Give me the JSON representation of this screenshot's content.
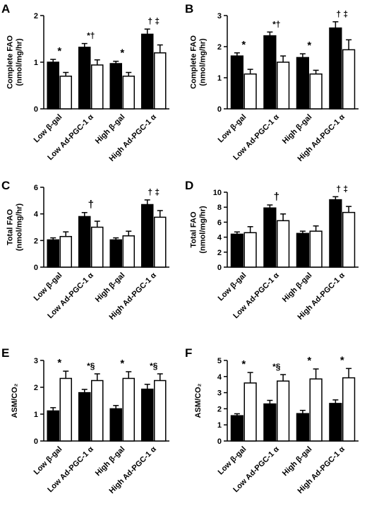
{
  "chart_data": [
    {
      "type": "bar",
      "panel": "A",
      "ylabel": [
        "Complete FAO",
        "(nmol/mg/hr)"
      ],
      "ylim": [
        0,
        2
      ],
      "yticks": [
        0,
        1,
        2
      ],
      "categories": [
        "Low β-gal",
        "Low Ad-PGC-1 α",
        "High β-gal",
        "High Ad-PGC-1 α"
      ],
      "series": [
        {
          "fill": "#000000",
          "values": [
            1.0,
            1.32,
            0.97,
            1.6
          ],
          "errors": [
            0.06,
            0.08,
            0.05,
            0.11
          ]
        },
        {
          "fill": "#ffffff",
          "values": [
            0.7,
            0.94,
            0.7,
            1.2
          ],
          "errors": [
            0.08,
            0.11,
            0.08,
            0.17
          ]
        }
      ],
      "annotations": [
        "*",
        "*†",
        "*",
        "† ‡"
      ]
    },
    {
      "type": "bar",
      "panel": "B",
      "ylabel": [
        "Complete FAO",
        "(nmol/mg/hr)"
      ],
      "ylim": [
        0,
        3
      ],
      "yticks": [
        0,
        1,
        2,
        3
      ],
      "categories": [
        "Low β-gal",
        "Low Ad-PGC-1 α",
        "High β-gal",
        "High Ad-PGC-1 α"
      ],
      "series": [
        {
          "fill": "#000000",
          "values": [
            1.7,
            2.35,
            1.65,
            2.6
          ],
          "errors": [
            0.1,
            0.12,
            0.12,
            0.2
          ]
        },
        {
          "fill": "#ffffff",
          "values": [
            1.12,
            1.5,
            1.12,
            1.9
          ],
          "errors": [
            0.15,
            0.2,
            0.12,
            0.32
          ]
        }
      ],
      "annotations": [
        "*",
        "*†",
        "*",
        "† ‡"
      ]
    },
    {
      "type": "bar",
      "panel": "C",
      "ylabel": [
        "Total FAO",
        "(nmol/mg/hr)"
      ],
      "ylim": [
        0,
        6
      ],
      "yticks": [
        0,
        2,
        4,
        6
      ],
      "categories": [
        "Low β-gal",
        "Low Ad-PGC-1 α",
        "High β-gal",
        "High Ad-PGC-1 α"
      ],
      "series": [
        {
          "fill": "#000000",
          "values": [
            2.05,
            3.8,
            2.05,
            4.7
          ],
          "errors": [
            0.15,
            0.3,
            0.15,
            0.35
          ]
        },
        {
          "fill": "#ffffff",
          "values": [
            2.3,
            3.0,
            2.35,
            3.75
          ],
          "errors": [
            0.35,
            0.45,
            0.35,
            0.5
          ]
        }
      ],
      "annotations": [
        "",
        "†",
        "",
        "† ‡"
      ]
    },
    {
      "type": "bar",
      "panel": "D",
      "ylabel": [
        "Total FAO",
        "(nmol/mg/hr)"
      ],
      "ylim": [
        0,
        10
      ],
      "yticks": [
        0,
        2,
        4,
        6,
        8,
        10
      ],
      "categories": [
        "Low β-gal",
        "Low Ad-PGC-1 α",
        "High β-gal",
        "High Ad-PGC-1 α"
      ],
      "series": [
        {
          "fill": "#000000",
          "values": [
            4.4,
            7.9,
            4.5,
            9.0
          ],
          "errors": [
            0.3,
            0.4,
            0.3,
            0.4
          ]
        },
        {
          "fill": "#ffffff",
          "values": [
            4.6,
            6.2,
            4.8,
            7.3
          ],
          "errors": [
            0.8,
            0.9,
            0.7,
            0.8
          ]
        }
      ],
      "annotations": [
        "",
        "†",
        "",
        "† ‡"
      ]
    },
    {
      "type": "bar",
      "panel": "E",
      "ylabel": [
        "ASM/CO₂"
      ],
      "ylim": [
        0,
        3
      ],
      "yticks": [
        0,
        1,
        2,
        3
      ],
      "categories": [
        "Low β-gal",
        "Low Ad-PGC-1 α",
        "High β-gal",
        "High Ad-PGC-1 α"
      ],
      "series": [
        {
          "fill": "#000000",
          "values": [
            1.12,
            1.8,
            1.2,
            1.93
          ],
          "errors": [
            0.12,
            0.12,
            0.12,
            0.18
          ]
        },
        {
          "fill": "#ffffff",
          "values": [
            2.33,
            2.25,
            2.33,
            2.25
          ],
          "errors": [
            0.27,
            0.25,
            0.25,
            0.25
          ]
        }
      ],
      "annotations": [
        "*",
        "*§",
        "*",
        "*§"
      ]
    },
    {
      "type": "bar",
      "panel": "F",
      "ylabel": [
        "ASM/CO₂"
      ],
      "ylim": [
        0,
        5
      ],
      "yticks": [
        0,
        1,
        2,
        3,
        4,
        5
      ],
      "categories": [
        "Low β-gal",
        "Low Ad-PGC-1 α",
        "High β-gal",
        "High Ad-PGC-1 α"
      ],
      "series": [
        {
          "fill": "#000000",
          "values": [
            1.57,
            2.3,
            1.7,
            2.33
          ],
          "errors": [
            0.12,
            0.22,
            0.2,
            0.22
          ]
        },
        {
          "fill": "#ffffff",
          "values": [
            3.6,
            3.72,
            3.85,
            3.92
          ],
          "errors": [
            0.65,
            0.4,
            0.62,
            0.58
          ]
        }
      ],
      "annotations": [
        "*",
        "*§",
        "*",
        "*"
      ]
    }
  ]
}
